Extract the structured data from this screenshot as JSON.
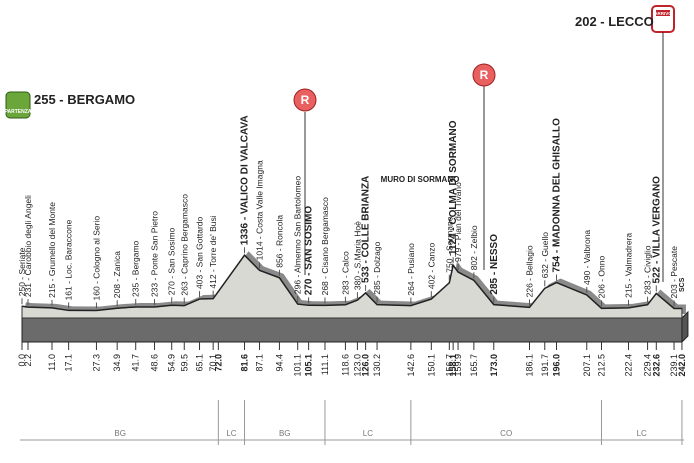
{
  "start": {
    "label": "255 - BERGAMO",
    "badge": "PARTENZA"
  },
  "finish": {
    "label": "202 - LECCO",
    "badge": "ARRIVO"
  },
  "feed_zone_marker": "R",
  "climb_note": "MURO DI SORMANO",
  "end_note": "SCS",
  "waypoints": [
    {
      "label": "250 - Seriate",
      "km": "0.0"
    },
    {
      "label": "231 - Carobbio degli Angeli",
      "km": "2.2"
    },
    {
      "label": "215 - Grumello del Monte",
      "km": "11.0"
    },
    {
      "label": "161 - Loc. Baraccone",
      "km": "17.1"
    },
    {
      "label": "160 - Cologno al Serio",
      "km": "27.3"
    },
    {
      "label": "208 - Zanica",
      "km": "34.9"
    },
    {
      "label": "235 - Bergamo",
      "km": "41.7"
    },
    {
      "label": "233 - Ponte San Pietro",
      "km": "48.6"
    },
    {
      "label": "270 - San Sosimo",
      "km": "54.9"
    },
    {
      "label": "263 - Caprino Bergamasco",
      "km": "59.5"
    },
    {
      "label": "403 - San Gottardo",
      "km": "65.1"
    },
    {
      "label": "412 - Torre de' Busi",
      "km": "70.1"
    },
    {
      "label": "1336 - VALICO DI VALCAVA",
      "km": "81.6"
    },
    {
      "label": "1014 - Costa Valle Imagna",
      "km": "87.1"
    },
    {
      "label": "856 - Roncola",
      "km": "94.4"
    },
    {
      "label": "296 - Almenno San Bartolomeo",
      "km": "101.1"
    },
    {
      "label": "270 - SAN SOSIMO",
      "km": "105.1"
    },
    {
      "label": "268 - Cisano Bergamasco",
      "km": "111.1"
    },
    {
      "label": "283 - Calco",
      "km": "118.6"
    },
    {
      "label": "380 - S.Maria Hoè",
      "km": "123.0"
    },
    {
      "label": "533 - COLLE BRIANZA",
      "km": "126.0"
    },
    {
      "label": "285 - Dolzago",
      "km": "130.2"
    },
    {
      "label": "264 - Pusiano",
      "km": "142.6"
    },
    {
      "label": "402 - Canzo",
      "km": "150.1"
    },
    {
      "label": "750 - Sormano",
      "km": "156.7"
    },
    {
      "label": "1124 - COLMA DI SORMANO",
      "km": "158.1"
    },
    {
      "label": "979 - Pian del Tivano",
      "km": "159.9"
    },
    {
      "label": "802 - Zelbio",
      "km": "165.7"
    },
    {
      "label": "285 - NESSO",
      "km": "173.0"
    },
    {
      "label": "226 - Bellagio",
      "km": "186.1"
    },
    {
      "label": "632 - Guello",
      "km": "191.7"
    },
    {
      "label": "754 - MADONNA DEL GHISALLO",
      "km": "196.0"
    },
    {
      "label": "490 - Valbrona",
      "km": "207.1"
    },
    {
      "label": "206 - Onno",
      "km": "212.5"
    },
    {
      "label": "215 - Valmadrera",
      "km": "222.4"
    },
    {
      "label": "283 - Civiglio",
      "km": "229.4"
    },
    {
      "label": "522 - VILLA VERGANO",
      "km": "232.6"
    },
    {
      "label": "203 - Pescate",
      "km": "239.1"
    }
  ],
  "extra_km": [
    "72.0",
    "242.0"
  ],
  "provinces": [
    {
      "label": "BG",
      "from": "0.0",
      "to": "72.0"
    },
    {
      "label": "LC",
      "from": "72.0",
      "to": "81.6"
    },
    {
      "label": "BG",
      "from": "81.6",
      "to": "111.1"
    },
    {
      "label": "LC",
      "from": "111.1",
      "to": "142.6"
    },
    {
      "label": "CO",
      "from": "142.6",
      "to": "212.5"
    },
    {
      "label": "LC",
      "from": "212.5",
      "to": "242.0"
    }
  ]
}
